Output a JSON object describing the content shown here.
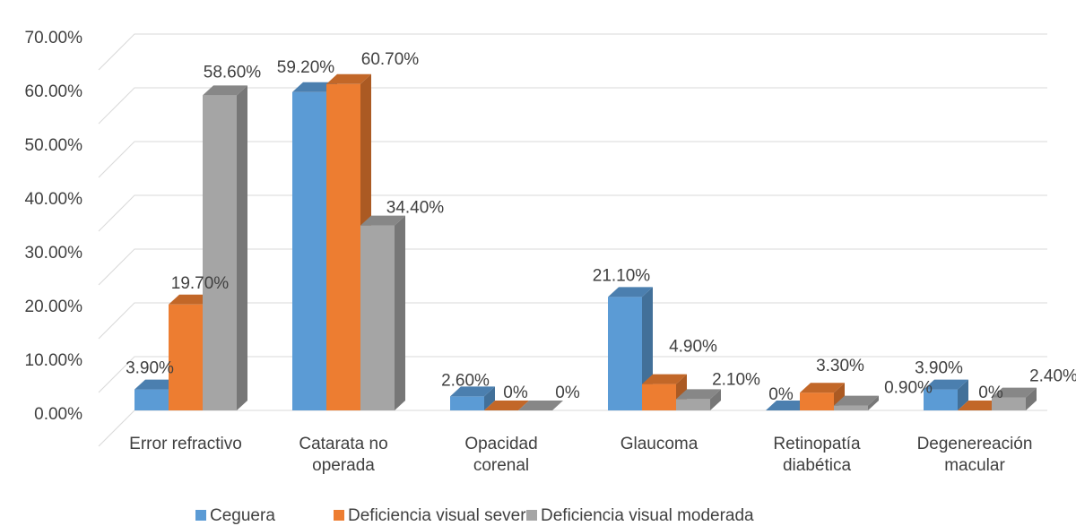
{
  "chart_data": {
    "type": "bar",
    "style": "3d-clustered-column",
    "categories": [
      [
        "Error refractivo"
      ],
      [
        "Catarata no",
        "operada"
      ],
      [
        "Opacidad",
        "corenal"
      ],
      [
        "Glaucoma"
      ],
      [
        "Retinopatía",
        "diabética"
      ],
      [
        "Degenereación",
        "macular"
      ]
    ],
    "series": [
      {
        "name": "Ceguera",
        "color": "#5b9bd5",
        "values": [
          3.9,
          59.2,
          2.6,
          21.1,
          0,
          3.9
        ],
        "labels": [
          "3.90%",
          "59.20%",
          "2.60%",
          "21.10%",
          "0%",
          "3.90%"
        ]
      },
      {
        "name": "Deficiencia visual severa",
        "color": "#ed7d31",
        "values": [
          19.7,
          60.7,
          0,
          4.9,
          3.3,
          0
        ],
        "labels": [
          "19.70%",
          "60.70%",
          "0%",
          "4.90%",
          "3.30%",
          "0%"
        ]
      },
      {
        "name": "Deficiencia visual moderada",
        "color": "#a5a5a5",
        "values": [
          58.6,
          34.4,
          0,
          2.1,
          0.9,
          2.4
        ],
        "labels": [
          "58.60%",
          "34.40%",
          "0%",
          "2.10%",
          "0.90%",
          "2.40%"
        ]
      }
    ],
    "y_ticks": [
      "0.00%",
      "10.00%",
      "20.00%",
      "30.00%",
      "40.00%",
      "50.00%",
      "60.00%",
      "70.00%"
    ],
    "ylim": [
      0,
      70
    ],
    "grid": true,
    "legend_position": "bottom"
  }
}
